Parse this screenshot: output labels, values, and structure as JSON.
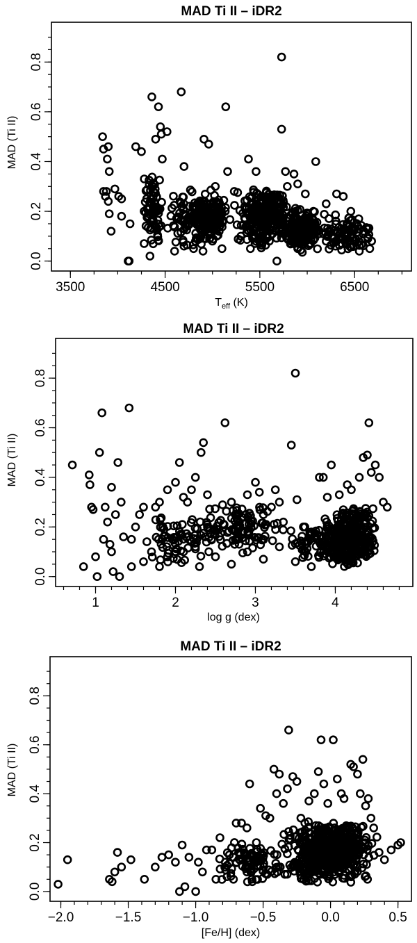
{
  "chart_data": [
    {
      "type": "scatter",
      "title": "MAD Ti II – iDR2",
      "xlabel_main": "T",
      "xlabel_sub": "eff",
      "xlabel_unit": " (K)",
      "ylabel": "MAD (Ti II)",
      "xlim": [
        3300,
        7100
      ],
      "ylim": [
        -0.04,
        0.96
      ],
      "xticks": [
        3500,
        4500,
        5500,
        6500
      ],
      "xtick_labels": [
        "3500",
        "4500",
        "5500",
        "6500"
      ],
      "xminor": [
        3500,
        3750,
        4000,
        4250,
        4500,
        4750,
        5000,
        5250,
        5500,
        5750,
        6000,
        6250,
        6500,
        6750,
        7000
      ],
      "yticks": [
        0.0,
        0.2,
        0.4,
        0.6,
        0.8
      ],
      "ytick_labels": [
        "0.0",
        "0.2",
        "0.4",
        "0.6",
        "0.8"
      ],
      "yminor": [
        0.0,
        0.05,
        0.1,
        0.15,
        0.2,
        0.25,
        0.3,
        0.35,
        0.4,
        0.45,
        0.5,
        0.55,
        0.6,
        0.65,
        0.7,
        0.75,
        0.8,
        0.85,
        0.9
      ],
      "points": [
        [
          3840,
          0.5
        ],
        [
          3850,
          0.45
        ],
        [
          3900,
          0.46
        ],
        [
          3890,
          0.41
        ],
        [
          3910,
          0.36
        ],
        [
          3850,
          0.28
        ],
        [
          3870,
          0.26
        ],
        [
          3880,
          0.28
        ],
        [
          3900,
          0.24
        ],
        [
          3910,
          0.19
        ],
        [
          3930,
          0.12
        ],
        [
          3970,
          0.29
        ],
        [
          4010,
          0.26
        ],
        [
          4040,
          0.25
        ],
        [
          4040,
          0.18
        ],
        [
          4110,
          0.0
        ],
        [
          4120,
          0.0
        ],
        [
          4130,
          0.15
        ],
        [
          4190,
          0.46
        ],
        [
          4250,
          0.44
        ],
        [
          4280,
          0.33
        ],
        [
          4310,
          0.21
        ],
        [
          4320,
          0.18
        ],
        [
          4340,
          0.02
        ],
        [
          4360,
          0.66
        ],
        [
          4400,
          0.49
        ],
        [
          4430,
          0.62
        ],
        [
          4450,
          0.54
        ],
        [
          4460,
          0.51
        ],
        [
          4470,
          0.41
        ],
        [
          4520,
          0.52
        ],
        [
          4670,
          0.68
        ],
        [
          4700,
          0.38
        ],
        [
          4910,
          0.49
        ],
        [
          4960,
          0.47
        ],
        [
          5030,
          0.3
        ],
        [
          5140,
          0.62
        ],
        [
          5160,
          0.36
        ],
        [
          5230,
          0.28
        ],
        [
          5380,
          0.41
        ],
        [
          5460,
          0.36
        ],
        [
          5680,
          0.0
        ],
        [
          5730,
          0.82
        ],
        [
          5730,
          0.53
        ],
        [
          5770,
          0.36
        ],
        [
          5790,
          0.3
        ],
        [
          5860,
          0.35
        ],
        [
          5900,
          0.31
        ],
        [
          5980,
          0.27
        ],
        [
          6090,
          0.4
        ],
        [
          6200,
          0.23
        ],
        [
          6310,
          0.27
        ],
        [
          6380,
          0.26
        ],
        [
          6460,
          0.2
        ],
        [
          6600,
          0.12
        ],
        [
          6640,
          0.09
        ],
        [
          6660,
          0.05
        ],
        [
          6680,
          0.08
        ],
        [
          5300,
          0.1
        ],
        [
          5400,
          0.05
        ],
        [
          5500,
          0.12
        ],
        [
          5600,
          0.08
        ],
        [
          5700,
          0.15
        ],
        [
          5800,
          0.1
        ],
        [
          5900,
          0.05
        ],
        [
          6000,
          0.1
        ],
        [
          6100,
          0.12
        ],
        [
          6200,
          0.08
        ],
        [
          6300,
          0.06
        ],
        [
          6400,
          0.1
        ],
        [
          6500,
          0.08
        ],
        [
          6550,
          0.04
        ],
        [
          4800,
          0.05
        ],
        [
          4900,
          0.04
        ],
        [
          5000,
          0.08
        ],
        [
          5100,
          0.05
        ],
        [
          4600,
          0.04
        ],
        [
          4700,
          0.06
        ]
      ],
      "clusters": [
        {
          "x": [
            4250,
            4500
          ],
          "y": [
            0.03,
            0.36
          ],
          "n": 70
        },
        {
          "x": [
            4500,
            5200
          ],
          "y": [
            0.05,
            0.3
          ],
          "n": 130
        },
        {
          "x": [
            4800,
            5150
          ],
          "y": [
            0.08,
            0.26
          ],
          "n": 110
        },
        {
          "x": [
            5200,
            5800
          ],
          "y": [
            0.05,
            0.3
          ],
          "n": 150
        },
        {
          "x": [
            5400,
            5800
          ],
          "y": [
            0.1,
            0.28
          ],
          "n": 110
        },
        {
          "x": [
            5700,
            6150
          ],
          "y": [
            0.02,
            0.22
          ],
          "n": 170
        },
        {
          "x": [
            6100,
            6700
          ],
          "y": [
            0.03,
            0.2
          ],
          "n": 90
        }
      ]
    },
    {
      "type": "scatter",
      "title": "MAD Ti II – iDR2",
      "xlabel_main": "log g (dex)",
      "xlabel_sub": "",
      "xlabel_unit": "",
      "ylabel": "MAD (Ti II)",
      "xlim": [
        0.5,
        4.97
      ],
      "ylim": [
        -0.04,
        0.96
      ],
      "xticks": [
        1,
        2,
        3,
        4
      ],
      "xtick_labels": [
        "1",
        "2",
        "3",
        "4"
      ],
      "xminor": [
        0.6,
        0.8,
        1.0,
        1.2,
        1.4,
        1.6,
        1.8,
        2.0,
        2.2,
        2.4,
        2.6,
        2.8,
        3.0,
        3.2,
        3.4,
        3.6,
        3.8,
        4.0,
        4.2,
        4.4,
        4.6,
        4.8
      ],
      "yticks": [
        0.0,
        0.2,
        0.4,
        0.6,
        0.8
      ],
      "ytick_labels": [
        "0.0",
        "0.2",
        "0.4",
        "0.6",
        "0.8"
      ],
      "yminor": [
        0.0,
        0.05,
        0.1,
        0.15,
        0.2,
        0.25,
        0.3,
        0.35,
        0.4,
        0.45,
        0.5,
        0.55,
        0.6,
        0.65,
        0.7,
        0.75,
        0.8,
        0.85,
        0.9
      ],
      "points": [
        [
          0.71,
          0.45
        ],
        [
          0.85,
          0.04
        ],
        [
          0.92,
          0.41
        ],
        [
          0.93,
          0.37
        ],
        [
          0.95,
          0.28
        ],
        [
          0.97,
          0.27
        ],
        [
          1.02,
          0.0
        ],
        [
          1.05,
          0.5
        ],
        [
          1.08,
          0.66
        ],
        [
          1.1,
          0.15
        ],
        [
          1.12,
          0.28
        ],
        [
          1.15,
          0.22
        ],
        [
          1.18,
          0.13
        ],
        [
          1.2,
          0.36
        ],
        [
          1.22,
          0.02
        ],
        [
          1.25,
          0.25
        ],
        [
          1.28,
          0.46
        ],
        [
          1.3,
          0.0
        ],
        [
          1.32,
          0.3
        ],
        [
          1.35,
          0.16
        ],
        [
          1.42,
          0.68
        ],
        [
          1.45,
          0.15
        ],
        [
          1.5,
          0.2
        ],
        [
          1.55,
          0.25
        ],
        [
          1.6,
          0.28
        ],
        [
          1.75,
          0.28
        ],
        [
          1.8,
          0.3
        ],
        [
          1.9,
          0.35
        ],
        [
          2.0,
          0.38
        ],
        [
          2.05,
          0.46
        ],
        [
          2.1,
          0.32
        ],
        [
          2.15,
          0.3
        ],
        [
          2.2,
          0.35
        ],
        [
          2.25,
          0.4
        ],
        [
          2.32,
          0.5
        ],
        [
          2.35,
          0.54
        ],
        [
          2.4,
          0.33
        ],
        [
          2.62,
          0.62
        ],
        [
          2.7,
          0.3
        ],
        [
          2.75,
          0.25
        ],
        [
          2.8,
          0.22
        ],
        [
          2.9,
          0.33
        ],
        [
          3.0,
          0.38
        ],
        [
          3.05,
          0.34
        ],
        [
          3.1,
          0.25
        ],
        [
          3.2,
          0.28
        ],
        [
          3.25,
          0.35
        ],
        [
          3.3,
          0.3
        ],
        [
          3.35,
          0.22
        ],
        [
          3.45,
          0.53
        ],
        [
          3.5,
          0.82
        ],
        [
          3.52,
          0.31
        ],
        [
          3.6,
          0.2
        ],
        [
          3.7,
          0.18
        ],
        [
          3.8,
          0.4
        ],
        [
          3.85,
          0.4
        ],
        [
          3.9,
          0.32
        ],
        [
          3.95,
          0.45
        ],
        [
          4.05,
          0.33
        ],
        [
          4.15,
          0.37
        ],
        [
          4.2,
          0.35
        ],
        [
          4.3,
          0.4
        ],
        [
          4.35,
          0.48
        ],
        [
          4.4,
          0.49
        ],
        [
          4.42,
          0.62
        ],
        [
          4.45,
          0.42
        ],
        [
          4.5,
          0.45
        ],
        [
          4.55,
          0.4
        ],
        [
          4.6,
          0.3
        ],
        [
          4.65,
          0.28
        ],
        [
          1.45,
          0.04
        ],
        [
          1.6,
          0.06
        ],
        [
          1.7,
          0.1
        ],
        [
          1.8,
          0.04
        ],
        [
          1.9,
          0.08
        ],
        [
          2.1,
          0.1
        ],
        [
          2.3,
          0.04
        ],
        [
          2.5,
          0.08
        ],
        [
          2.7,
          0.05
        ],
        [
          2.9,
          0.1
        ],
        [
          3.1,
          0.07
        ],
        [
          3.3,
          0.12
        ],
        [
          3.5,
          0.06
        ],
        [
          3.7,
          0.04
        ],
        [
          2.2,
          0.14
        ],
        [
          2.4,
          0.2
        ],
        [
          1.2,
          0.1
        ],
        [
          1.0,
          0.08
        ]
      ],
      "clusters": [
        {
          "x": [
            1.6,
            2.4
          ],
          "y": [
            0.04,
            0.25
          ],
          "n": 60
        },
        {
          "x": [
            2.2,
            3.4
          ],
          "y": [
            0.08,
            0.3
          ],
          "n": 110
        },
        {
          "x": [
            3.4,
            3.85
          ],
          "y": [
            0.06,
            0.22
          ],
          "n": 30
        },
        {
          "x": [
            3.75,
            4.35
          ],
          "y": [
            0.03,
            0.24
          ],
          "n": 180
        },
        {
          "x": [
            4.0,
            4.55
          ],
          "y": [
            0.05,
            0.3
          ],
          "n": 180
        }
      ]
    },
    {
      "type": "scatter",
      "title": "MAD Ti II – iDR2",
      "xlabel_main": "[Fe/H] (dex)",
      "xlabel_sub": "",
      "xlabel_unit": "",
      "ylabel": "MAD (Ti II)",
      "xlim": [
        -2.08,
        0.6
      ],
      "ylim": [
        -0.04,
        0.96
      ],
      "xticks": [
        -2.0,
        -1.5,
        -1.0,
        -0.5,
        0.0,
        0.5
      ],
      "xtick_labels": [
        "−2.0",
        "−1.5",
        "−1.0",
        "−0.5",
        "0.0",
        "0.5"
      ],
      "xminor": [
        -2.0,
        -1.9,
        -1.8,
        -1.7,
        -1.6,
        -1.5,
        -1.4,
        -1.3,
        -1.2,
        -1.1,
        -1.0,
        -0.9,
        -0.8,
        -0.7,
        -0.6,
        -0.5,
        -0.4,
        -0.3,
        -0.2,
        -0.1,
        0.0,
        0.1,
        0.2,
        0.3,
        0.4,
        0.5
      ],
      "yticks": [
        0.0,
        0.2,
        0.4,
        0.6,
        0.8
      ],
      "ytick_labels": [
        "0.0",
        "0.2",
        "0.4",
        "0.6",
        "0.8"
      ],
      "yminor": [
        0.0,
        0.05,
        0.1,
        0.15,
        0.2,
        0.25,
        0.3,
        0.35,
        0.4,
        0.45,
        0.5,
        0.55,
        0.6,
        0.65,
        0.7,
        0.75,
        0.8,
        0.85,
        0.9
      ],
      "points": [
        [
          -2.02,
          0.03
        ],
        [
          -1.95,
          0.13
        ],
        [
          -1.64,
          0.05
        ],
        [
          -1.62,
          0.04
        ],
        [
          -1.6,
          0.08
        ],
        [
          -1.58,
          0.16
        ],
        [
          -1.55,
          0.1
        ],
        [
          -1.48,
          0.13
        ],
        [
          -1.38,
          0.05
        ],
        [
          -1.3,
          0.1
        ],
        [
          -1.25,
          0.14
        ],
        [
          -1.2,
          0.15
        ],
        [
          -1.15,
          0.12
        ],
        [
          -1.12,
          0.0
        ],
        [
          -1.1,
          0.19
        ],
        [
          -1.08,
          0.02
        ],
        [
          -1.05,
          0.14
        ],
        [
          -1.0,
          0.0
        ],
        [
          -0.98,
          0.12
        ],
        [
          -0.95,
          0.08
        ],
        [
          -0.92,
          0.17
        ],
        [
          -0.88,
          0.17
        ],
        [
          -0.85,
          0.05
        ],
        [
          -0.82,
          0.22
        ],
        [
          -0.78,
          0.12
        ],
        [
          -0.75,
          0.15
        ],
        [
          -0.7,
          0.28
        ],
        [
          -0.66,
          0.28
        ],
        [
          -0.62,
          0.26
        ],
        [
          -0.6,
          0.44
        ],
        [
          -0.55,
          0.2
        ],
        [
          -0.52,
          0.34
        ],
        [
          -0.48,
          0.31
        ],
        [
          -0.45,
          0.3
        ],
        [
          -0.42,
          0.5
        ],
        [
          -0.4,
          0.4
        ],
        [
          -0.38,
          0.48
        ],
        [
          -0.35,
          0.36
        ],
        [
          -0.32,
          0.42
        ],
        [
          -0.31,
          0.66
        ],
        [
          -0.28,
          0.47
        ],
        [
          -0.25,
          0.45
        ],
        [
          -0.22,
          0.3
        ],
        [
          -0.19,
          0.28
        ],
        [
          -0.16,
          0.37
        ],
        [
          -0.12,
          0.4
        ],
        [
          -0.09,
          0.49
        ],
        [
          -0.07,
          0.62
        ],
        [
          -0.05,
          0.44
        ],
        [
          -0.02,
          0.36
        ],
        [
          0.02,
          0.62
        ],
        [
          0.05,
          0.46
        ],
        [
          0.08,
          0.4
        ],
        [
          0.1,
          0.38
        ],
        [
          0.15,
          0.52
        ],
        [
          0.17,
          0.51
        ],
        [
          0.2,
          0.48
        ],
        [
          0.22,
          0.4
        ],
        [
          0.24,
          0.54
        ],
        [
          0.26,
          0.35
        ],
        [
          0.28,
          0.38
        ],
        [
          0.3,
          0.3
        ],
        [
          0.32,
          0.26
        ],
        [
          0.36,
          0.16
        ],
        [
          0.4,
          0.13
        ],
        [
          0.45,
          0.17
        ],
        [
          0.5,
          0.19
        ],
        [
          0.52,
          0.2
        ],
        [
          -0.72,
          0.05
        ],
        [
          -0.62,
          0.08
        ],
        [
          -0.58,
          0.04
        ]
      ],
      "clusters": [
        {
          "x": [
            -0.85,
            -0.35
          ],
          "y": [
            0.02,
            0.22
          ],
          "n": 90
        },
        {
          "x": [
            -0.4,
            0.35
          ],
          "y": [
            0.02,
            0.3
          ],
          "n": 380
        },
        {
          "x": [
            -0.2,
            0.3
          ],
          "y": [
            0.08,
            0.28
          ],
          "n": 160
        }
      ]
    }
  ]
}
